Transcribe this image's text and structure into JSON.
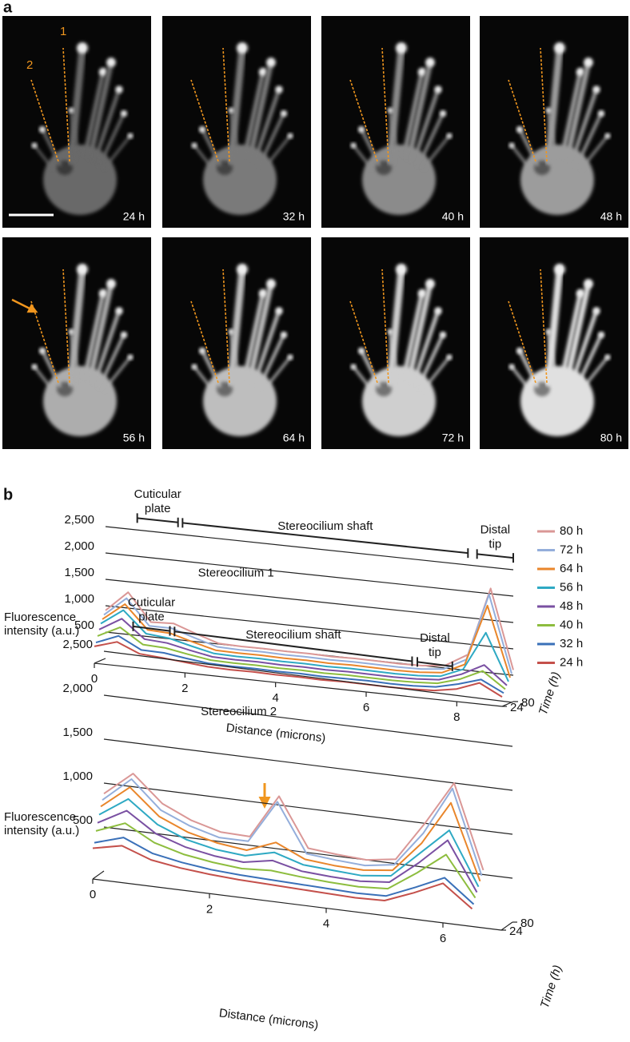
{
  "panel_a": {
    "label": "a",
    "frames": [
      "24 h",
      "32 h",
      "40 h",
      "48 h",
      "56 h",
      "64 h",
      "72 h",
      "80 h"
    ],
    "beam_labels": [
      "1",
      "2"
    ]
  },
  "panel_b_label": "b",
  "chart_data": [
    {
      "type": "waterfall",
      "title": "Stereocilium 1",
      "regions": [
        {
          "label": [
            "Cuticular",
            "plate"
          ],
          "from": 0.7,
          "to": 1.6
        },
        {
          "label": [
            "Stereocilium shaft"
          ],
          "from": 1.7,
          "to": 8.0
        },
        {
          "label": [
            "Distal",
            "tip"
          ],
          "from": 8.2,
          "to": 9.0
        }
      ],
      "y_label": [
        "Fluorescence",
        "intensity (a.u.)"
      ],
      "x_label": "Distance (microns)",
      "z_label": "Time (h)",
      "x": [
        0,
        0.5,
        1,
        1.5,
        2,
        2.5,
        3,
        3.5,
        4,
        4.5,
        5,
        5.5,
        6,
        6.5,
        7,
        7.5,
        8,
        8.5,
        9
      ],
      "xlim": [
        0,
        9
      ],
      "xticks": [
        0,
        2,
        4,
        6,
        8
      ],
      "ylim": [
        0,
        2500
      ],
      "yticks": [
        500,
        {
          "value": 1000,
          "label": "1,000"
        },
        {
          "value": 1500,
          "label": "1,500"
        },
        {
          "value": 2000,
          "label": "2,000"
        },
        {
          "value": 2500,
          "label": "2,500"
        }
      ],
      "zlim": [
        24,
        80
      ],
      "zticks": [
        24,
        80
      ],
      "grid": true,
      "legend": "right",
      "series": [
        {
          "name": "24 h",
          "color": "#c4504b",
          "values": [
            320,
            450,
            270,
            240,
            200,
            160,
            150,
            155,
            145,
            150,
            140,
            150,
            145,
            140,
            145,
            165,
            240,
            400,
            180
          ]
        },
        {
          "name": "32 h",
          "color": "#3a70b8",
          "values": [
            380,
            550,
            330,
            320,
            260,
            210,
            200,
            205,
            195,
            200,
            190,
            195,
            200,
            190,
            195,
            220,
            320,
            450,
            240
          ]
        },
        {
          "name": "40 h",
          "color": "#8dbd3e",
          "values": [
            490,
            700,
            420,
            400,
            325,
            260,
            250,
            255,
            245,
            250,
            240,
            250,
            245,
            240,
            250,
            275,
            400,
            600,
            300
          ]
        },
        {
          "name": "48 h",
          "color": "#7a50a2",
          "values": [
            600,
            850,
            510,
            480,
            390,
            310,
            300,
            305,
            295,
            300,
            290,
            300,
            295,
            290,
            300,
            330,
            480,
            700,
            360
          ]
        },
        {
          "name": "56 h",
          "color": "#2ea9c3",
          "values": [
            700,
            1000,
            600,
            560,
            455,
            360,
            350,
            355,
            345,
            350,
            340,
            350,
            345,
            340,
            350,
            385,
            560,
            1300,
            420
          ]
        },
        {
          "name": "64 h",
          "color": "#e9862b",
          "values": [
            770,
            1100,
            660,
            640,
            520,
            410,
            400,
            405,
            395,
            400,
            390,
            400,
            395,
            390,
            400,
            440,
            640,
            1800,
            480
          ]
        },
        {
          "name": "72 h",
          "color": "#94aedb",
          "values": [
            840,
            1200,
            720,
            720,
            585,
            460,
            450,
            455,
            445,
            450,
            440,
            450,
            445,
            440,
            450,
            495,
            720,
            2000,
            540
          ]
        },
        {
          "name": "80 h",
          "color": "#da9796",
          "values": [
            910,
            1300,
            780,
            800,
            650,
            510,
            500,
            505,
            495,
            500,
            490,
            500,
            495,
            490,
            500,
            550,
            800,
            2100,
            600
          ]
        }
      ]
    },
    {
      "type": "waterfall",
      "title": "Stereocilium 2",
      "regions": [
        {
          "label": [
            "Cuticular",
            "plate"
          ],
          "from": 0.5,
          "to": 1.13
        },
        {
          "label": [
            "Stereocilium shaft"
          ],
          "from": 1.21,
          "to": 5.28
        },
        {
          "label": [
            "Distal",
            "tip"
          ],
          "from": 5.37,
          "to": 5.97
        }
      ],
      "y_label": [
        "Fluorescence",
        "intensity (a.u.)"
      ],
      "x_label": "Distance (microns)",
      "z_label": "Time (h)",
      "x": [
        0,
        0.5,
        1,
        1.5,
        2,
        2.5,
        3,
        3.5,
        4,
        4.5,
        5,
        5.5,
        6,
        6.5
      ],
      "xlim": [
        0,
        7
      ],
      "xticks": [
        0,
        2,
        4,
        6
      ],
      "ylim": [
        0,
        2500
      ],
      "yticks": [
        500,
        {
          "value": 1000,
          "label": "1,000"
        },
        {
          "value": 1500,
          "label": "1,500"
        },
        {
          "value": 2000,
          "label": "2,000"
        },
        {
          "value": 2500,
          "label": "2,500"
        }
      ],
      "zlim": [
        24,
        80
      ],
      "zticks": [
        24,
        80
      ],
      "grid": true,
      "series": [
        {
          "color": "#c4504b",
          "values": [
            350,
            420,
            300,
            250,
            220,
            200,
            190,
            180,
            170,
            160,
            170,
            300,
            450,
            200
          ]
        },
        {
          "color": "#3a70b8",
          "values": [
            400,
            500,
            360,
            300,
            260,
            240,
            230,
            220,
            210,
            200,
            210,
            350,
            500,
            240
          ]
        },
        {
          "color": "#8dbd3e",
          "values": [
            520,
            650,
            470,
            380,
            330,
            300,
            320,
            290,
            270,
            260,
            280,
            500,
            750,
            300
          ]
        },
        {
          "color": "#7a50a2",
          "values": [
            600,
            780,
            560,
            450,
            390,
            360,
            420,
            340,
            320,
            310,
            340,
            600,
            900,
            350
          ]
        },
        {
          "color": "#2ea9c3",
          "values": [
            680,
            900,
            650,
            520,
            450,
            420,
            500,
            400,
            380,
            360,
            400,
            700,
            1000,
            400
          ]
        },
        {
          "color": "#e9862b",
          "values": [
            760,
            1020,
            730,
            590,
            510,
            470,
            600,
            450,
            420,
            410,
            450,
            800,
            1300,
            450
          ]
        },
        {
          "color": "#94aedb",
          "values": [
            820,
            1100,
            790,
            650,
            560,
            560,
            1050,
            500,
            470,
            450,
            500,
            900,
            1450,
            500
          ]
        },
        {
          "color": "#da9796",
          "values": [
            880,
            1150,
            850,
            700,
            610,
            600,
            1100,
            550,
            520,
            500,
            550,
            1000,
            1500,
            550
          ]
        }
      ]
    }
  ]
}
